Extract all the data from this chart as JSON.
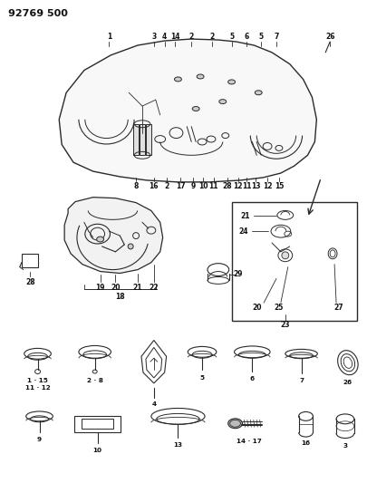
{
  "title": "92769 500",
  "bg_color": "#ffffff",
  "line_color": "#2a2a2a",
  "fig_width": 4.05,
  "fig_height": 5.33,
  "dpi": 100
}
